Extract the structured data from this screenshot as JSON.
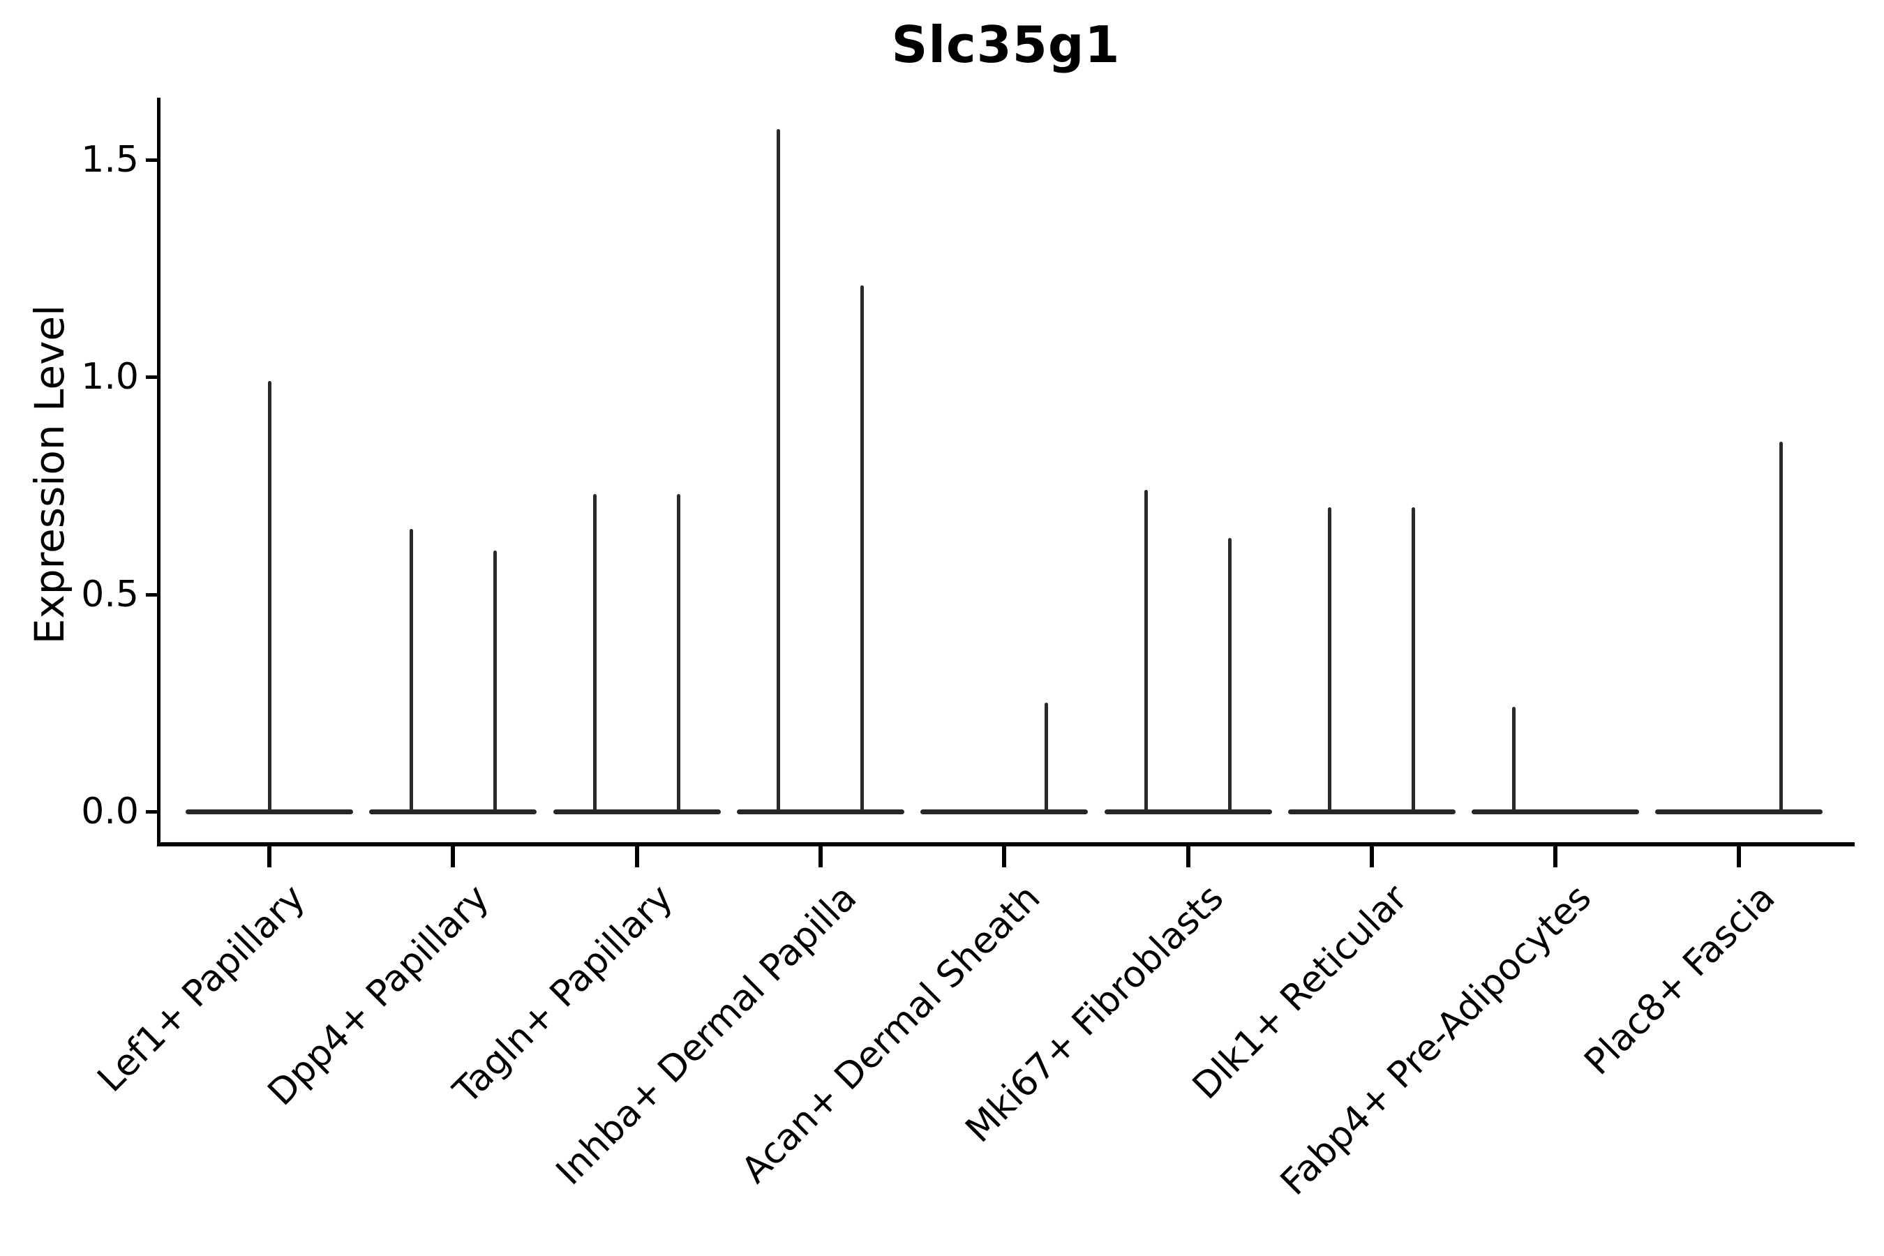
{
  "chart_data": {
    "type": "violin",
    "title": "Slc35g1",
    "xlabel": "",
    "ylabel": "Expression Level",
    "legend": "none",
    "grid": false,
    "line_color": "#262626",
    "yticks": [
      {
        "label": "0.0",
        "value": 0.0
      },
      {
        "label": "0.5",
        "value": 0.5
      },
      {
        "label": "1.0",
        "value": 1.0
      },
      {
        "label": "1.5",
        "value": 1.5
      }
    ],
    "ylim": [
      -0.07,
      1.64
    ],
    "categories": [
      {
        "label": "Lef1+ Papillary",
        "spikes": [
          {
            "side": "center",
            "offset": 0,
            "peak": 0.99
          }
        ]
      },
      {
        "label": "Dpp4+ Papillary",
        "spikes": [
          {
            "side": "left",
            "offset": -60,
            "peak": 0.65
          },
          {
            "side": "right",
            "offset": 60,
            "peak": 0.6
          }
        ]
      },
      {
        "label": "Tagln+ Papillary",
        "spikes": [
          {
            "side": "left",
            "offset": -60,
            "peak": 0.73
          },
          {
            "side": "right",
            "offset": 60,
            "peak": 0.73
          }
        ]
      },
      {
        "label": "Inhba+ Dermal Papilla",
        "spikes": [
          {
            "side": "left",
            "offset": -60,
            "peak": 1.57
          },
          {
            "side": "right",
            "offset": 60,
            "peak": 1.21
          }
        ]
      },
      {
        "label": "Acan+ Dermal Sheath",
        "spikes": [
          {
            "side": "right",
            "offset": 60,
            "peak": 0.25
          }
        ]
      },
      {
        "label": "Mki67+ Fibroblasts",
        "spikes": [
          {
            "side": "left",
            "offset": -60,
            "peak": 0.74
          },
          {
            "side": "right",
            "offset": 60,
            "peak": 0.63
          }
        ]
      },
      {
        "label": "Dlk1+ Reticular",
        "spikes": [
          {
            "side": "left",
            "offset": -60,
            "peak": 0.7
          },
          {
            "side": "right",
            "offset": 60,
            "peak": 0.7
          }
        ]
      },
      {
        "label": "Fabp4+ Pre-Adipocytes",
        "spikes": [
          {
            "side": "left",
            "offset": -60,
            "peak": 0.24
          }
        ]
      },
      {
        "label": "Plac8+ Fascia",
        "spikes": [
          {
            "side": "right",
            "offset": 60,
            "peak": 0.85
          }
        ]
      }
    ]
  },
  "layout_note": "all expression distributions are concentrated at 0 (flat violin bases) with thin density spikes reaching the listed peak values"
}
